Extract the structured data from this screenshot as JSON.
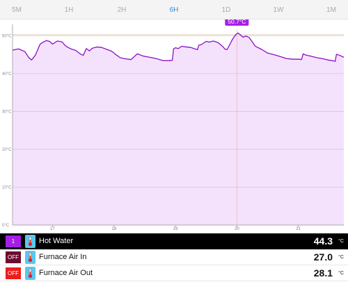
{
  "time_tabs": [
    {
      "label": "5M",
      "active": false
    },
    {
      "label": "1H",
      "active": false
    },
    {
      "label": "2H",
      "active": false
    },
    {
      "label": "6H",
      "active": true
    },
    {
      "label": "1D",
      "active": false
    },
    {
      "label": "1W",
      "active": false
    },
    {
      "label": "1M",
      "active": false
    }
  ],
  "chart_data": {
    "type": "area",
    "y_ticks": [
      "0°C",
      "10°C",
      "20°C",
      "30°C",
      "40°C",
      "50°C"
    ],
    "x_ticks": [
      "17",
      "18",
      "19",
      "20",
      "21"
    ],
    "ylim": [
      0,
      53
    ],
    "xlim": [
      16.35,
      21.74
    ],
    "grid": true,
    "series": [
      {
        "name": "Hot Water",
        "color": "#8a0fc4",
        "fill": "#f4e2fd",
        "x": [
          16.35,
          16.45,
          16.55,
          16.62,
          16.66,
          16.72,
          16.8,
          16.85,
          16.9,
          16.95,
          17.0,
          17.08,
          17.15,
          17.22,
          17.3,
          17.38,
          17.45,
          17.5,
          17.55,
          17.6,
          17.65,
          17.72,
          17.8,
          17.88,
          17.95,
          17.99,
          18.02,
          18.05,
          18.1,
          18.18,
          18.28,
          18.38,
          18.48,
          18.58,
          18.7,
          18.8,
          18.9,
          18.95,
          18.97,
          19.0,
          19.05,
          19.1,
          19.18,
          19.25,
          19.3,
          19.36,
          19.38,
          19.42,
          19.5,
          19.55,
          19.62,
          19.7,
          19.75,
          19.78,
          19.8,
          19.84,
          19.88,
          19.92,
          19.96,
          19.99,
          20.02,
          20.05,
          20.1,
          20.15,
          20.2,
          20.25,
          20.3,
          20.4,
          20.5,
          20.6,
          20.7,
          20.8,
          20.9,
          21.0,
          21.05,
          21.08,
          21.12,
          21.2,
          21.3,
          21.4,
          21.48,
          21.55,
          21.6,
          21.62,
          21.66,
          21.7,
          21.74
        ],
        "y": [
          46.2,
          46.5,
          45.8,
          44.1,
          43.6,
          44.8,
          47.8,
          48.3,
          48.7,
          48.5,
          47.8,
          48.6,
          48.4,
          47.2,
          46.5,
          46.1,
          45.2,
          44.8,
          46.6,
          46.0,
          46.7,
          47.0,
          46.9,
          46.4,
          46.0,
          45.6,
          45.1,
          44.8,
          44.2,
          43.9,
          43.7,
          45.2,
          44.6,
          44.3,
          43.9,
          43.4,
          43.4,
          43.5,
          46.5,
          46.8,
          46.6,
          47.2,
          47.0,
          46.9,
          46.6,
          46.3,
          47.5,
          47.6,
          48.5,
          48.3,
          48.6,
          48.1,
          47.4,
          47.0,
          46.5,
          46.3,
          47.5,
          48.8,
          49.8,
          50.4,
          50.7,
          50.3,
          49.6,
          49.9,
          49.5,
          48.4,
          47.2,
          46.4,
          45.4,
          45.0,
          44.5,
          44.0,
          43.8,
          43.8,
          43.7,
          45.2,
          44.9,
          44.6,
          44.2,
          43.9,
          43.6,
          43.4,
          43.2,
          45.1,
          44.9,
          44.6,
          44.3
        ]
      }
    ],
    "marker": {
      "x": 20.0,
      "label": "50.7°C"
    },
    "ref_line_y": 50.3
  },
  "sensors": [
    {
      "badge": "1",
      "badge_color": "#a61ee6",
      "name": "Hot Water",
      "value": "44.3",
      "unit": "°C",
      "selected": true
    },
    {
      "badge": "OFF",
      "badge_color": "#6e0b2f",
      "name": "Furnace Air In",
      "value": "27.0",
      "unit": "°C",
      "selected": false
    },
    {
      "badge": "OFF",
      "badge_color": "#ee1c1c",
      "name": "Furnace Air Out",
      "value": "28.1",
      "unit": "°C",
      "selected": false
    }
  ]
}
